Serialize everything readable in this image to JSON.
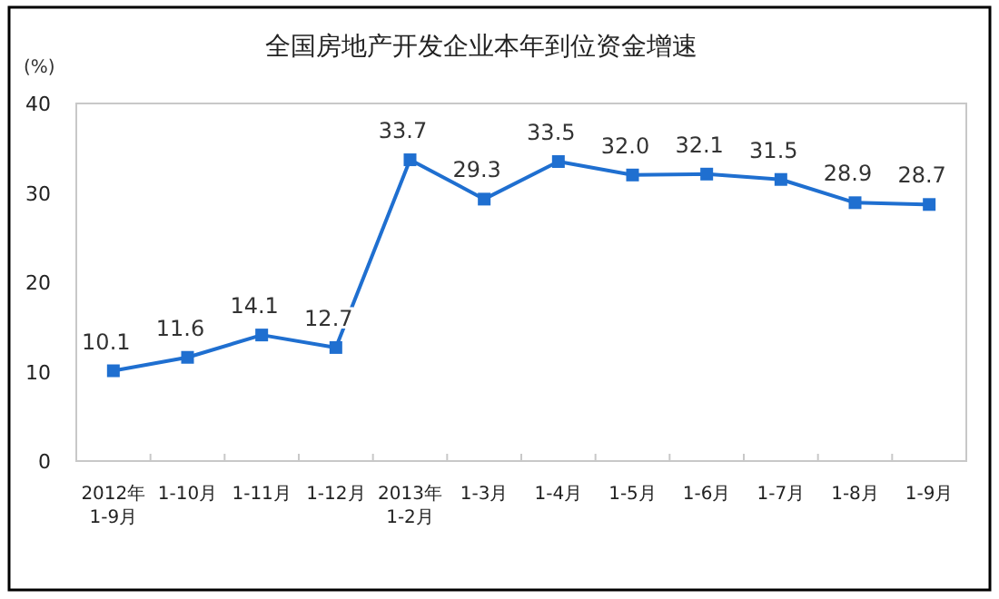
{
  "chart_data": {
    "type": "line",
    "title": "全国房地产开发企业本年到位资金增速",
    "ylabel": "(%)",
    "categories": [
      "2012年\n1-9月",
      "1-10月",
      "1-11月",
      "1-12月",
      "2013年\n1-2月",
      "1-3月",
      "1-4月",
      "1-5月",
      "1-6月",
      "1-7月",
      "1-8月",
      "1-9月"
    ],
    "series": [
      {
        "color": "#1f6fd0",
        "values": [
          10.1,
          11.6,
          14.1,
          12.7,
          33.7,
          29.3,
          33.5,
          32.0,
          32.1,
          31.5,
          28.9,
          28.7
        ],
        "value_labels": [
          "10.1",
          "11.6",
          "14.1",
          "12.7",
          "33.7",
          "29.3",
          "33.5",
          "32.0",
          "32.1",
          "31.5",
          "28.9",
          "28.7"
        ]
      }
    ],
    "ylim": [
      0,
      40
    ],
    "yticks": [
      0,
      10,
      20,
      30,
      40
    ],
    "grid": false,
    "marker": "square",
    "line_style": "solid"
  }
}
